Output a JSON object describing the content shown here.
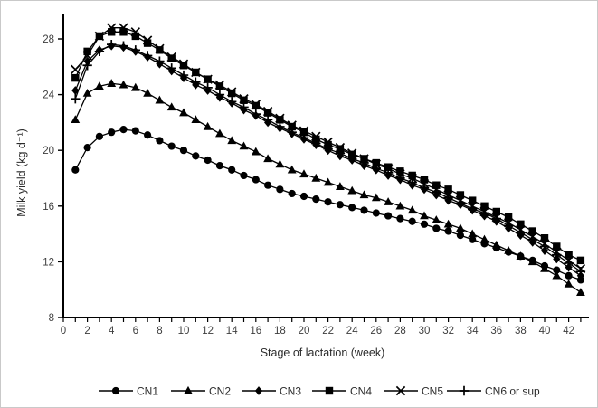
{
  "figure": {
    "background": "#ffffff",
    "border_color": "#c9c9c9",
    "axis_color": "#000000",
    "series_color": "#000000",
    "tick_label_color": "#3d3d3d",
    "axis_label_color": "#2b2b2b"
  },
  "chart_data": {
    "type": "line",
    "title": "",
    "xlabel": "Stage of lactation (week)",
    "ylabel": "Milk yield (kg d⁻¹)",
    "xlim": [
      0,
      43.5
    ],
    "ylim": [
      8,
      29.8
    ],
    "x_tick_step_minor": 1,
    "x_tick_labels": [
      0,
      2,
      4,
      6,
      8,
      10,
      12,
      14,
      16,
      18,
      20,
      22,
      24,
      26,
      28,
      30,
      32,
      34,
      36,
      38,
      40,
      42
    ],
    "y_tick_labels": [
      8,
      12,
      16,
      20,
      24,
      28
    ],
    "grid": "off",
    "legend_position": "bottom",
    "weeks": [
      1,
      2,
      3,
      4,
      5,
      6,
      7,
      8,
      9,
      10,
      11,
      12,
      13,
      14,
      15,
      16,
      17,
      18,
      19,
      20,
      21,
      22,
      23,
      24,
      25,
      26,
      27,
      28,
      29,
      30,
      31,
      32,
      33,
      34,
      35,
      36,
      37,
      38,
      39,
      40,
      41,
      42,
      43
    ],
    "series": [
      {
        "name": "CN1",
        "marker": "circle",
        "values": [
          18.6,
          20.2,
          21.0,
          21.3,
          21.5,
          21.4,
          21.1,
          20.7,
          20.3,
          20.0,
          19.6,
          19.3,
          18.9,
          18.6,
          18.2,
          17.9,
          17.5,
          17.2,
          16.9,
          16.7,
          16.5,
          16.3,
          16.1,
          15.9,
          15.7,
          15.5,
          15.3,
          15.1,
          14.9,
          14.7,
          14.4,
          14.2,
          13.9,
          13.6,
          13.3,
          13.0,
          12.7,
          12.4,
          12.1,
          11.7,
          11.4,
          11.0,
          10.7
        ]
      },
      {
        "name": "CN2",
        "marker": "triangle",
        "values": [
          22.2,
          24.1,
          24.6,
          24.8,
          24.7,
          24.5,
          24.1,
          23.6,
          23.1,
          22.7,
          22.2,
          21.7,
          21.2,
          20.7,
          20.3,
          19.9,
          19.4,
          19.0,
          18.6,
          18.3,
          18.0,
          17.7,
          17.4,
          17.1,
          16.8,
          16.6,
          16.3,
          16.0,
          15.7,
          15.3,
          15.0,
          14.7,
          14.4,
          14.0,
          13.6,
          13.2,
          12.8,
          12.4,
          12.0,
          11.5,
          11.0,
          10.4,
          9.8
        ]
      },
      {
        "name": "CN3",
        "marker": "diamond",
        "values": [
          24.3,
          26.4,
          27.2,
          27.5,
          27.4,
          27.1,
          26.7,
          26.2,
          25.7,
          25.2,
          24.7,
          24.3,
          23.8,
          23.4,
          22.9,
          22.5,
          22.0,
          21.6,
          21.2,
          20.8,
          20.4,
          20.0,
          19.6,
          19.3,
          18.9,
          18.6,
          18.2,
          17.9,
          17.5,
          17.2,
          16.8,
          16.4,
          16.1,
          15.7,
          15.3,
          14.9,
          14.4,
          13.9,
          13.4,
          12.8,
          12.2,
          11.6,
          11.0
        ]
      },
      {
        "name": "CN4",
        "marker": "square",
        "values": [
          25.2,
          27.1,
          28.2,
          28.5,
          28.5,
          28.2,
          27.7,
          27.2,
          26.6,
          26.1,
          25.6,
          25.1,
          24.6,
          24.1,
          23.6,
          23.2,
          22.7,
          22.2,
          21.7,
          21.3,
          20.8,
          20.4,
          20.1,
          19.7,
          19.4,
          19.1,
          18.8,
          18.5,
          18.2,
          17.9,
          17.5,
          17.2,
          16.8,
          16.4,
          16.0,
          15.6,
          15.2,
          14.7,
          14.2,
          13.7,
          13.1,
          12.5,
          12.1
        ]
      },
      {
        "name": "CN5",
        "marker": "cross",
        "values": [
          25.8,
          26.8,
          28.2,
          28.8,
          28.8,
          28.5,
          27.9,
          27.3,
          26.7,
          26.2,
          25.6,
          25.1,
          24.7,
          24.2,
          23.7,
          23.3,
          22.8,
          22.3,
          21.8,
          21.4,
          21.0,
          20.6,
          20.2,
          19.8,
          19.4,
          19.0,
          18.7,
          18.3,
          18.0,
          17.6,
          17.2,
          16.8,
          16.4,
          16.0,
          15.6,
          15.2,
          14.8,
          14.3,
          13.8,
          13.3,
          12.7,
          12.1,
          11.5
        ]
      },
      {
        "name": "CN6 or sup",
        "marker": "plus",
        "values": [
          23.7,
          26.1,
          27.1,
          27.6,
          27.5,
          27.2,
          26.8,
          26.4,
          25.9,
          25.4,
          24.9,
          24.5,
          24.0,
          23.5,
          23.1,
          22.6,
          22.2,
          21.7,
          21.3,
          20.9,
          20.5,
          20.1,
          19.8,
          19.4,
          19.1,
          18.7,
          18.4,
          18.0,
          17.7,
          17.3,
          17.0,
          16.6,
          16.2,
          15.8,
          15.5,
          15.1,
          14.6,
          14.1,
          13.6,
          13.1,
          12.5,
          11.9,
          11.3
        ]
      }
    ]
  },
  "legend": {
    "items": [
      "CN1",
      "CN2",
      "CN3",
      "CN4",
      "CN5",
      "CN6 or sup"
    ]
  }
}
